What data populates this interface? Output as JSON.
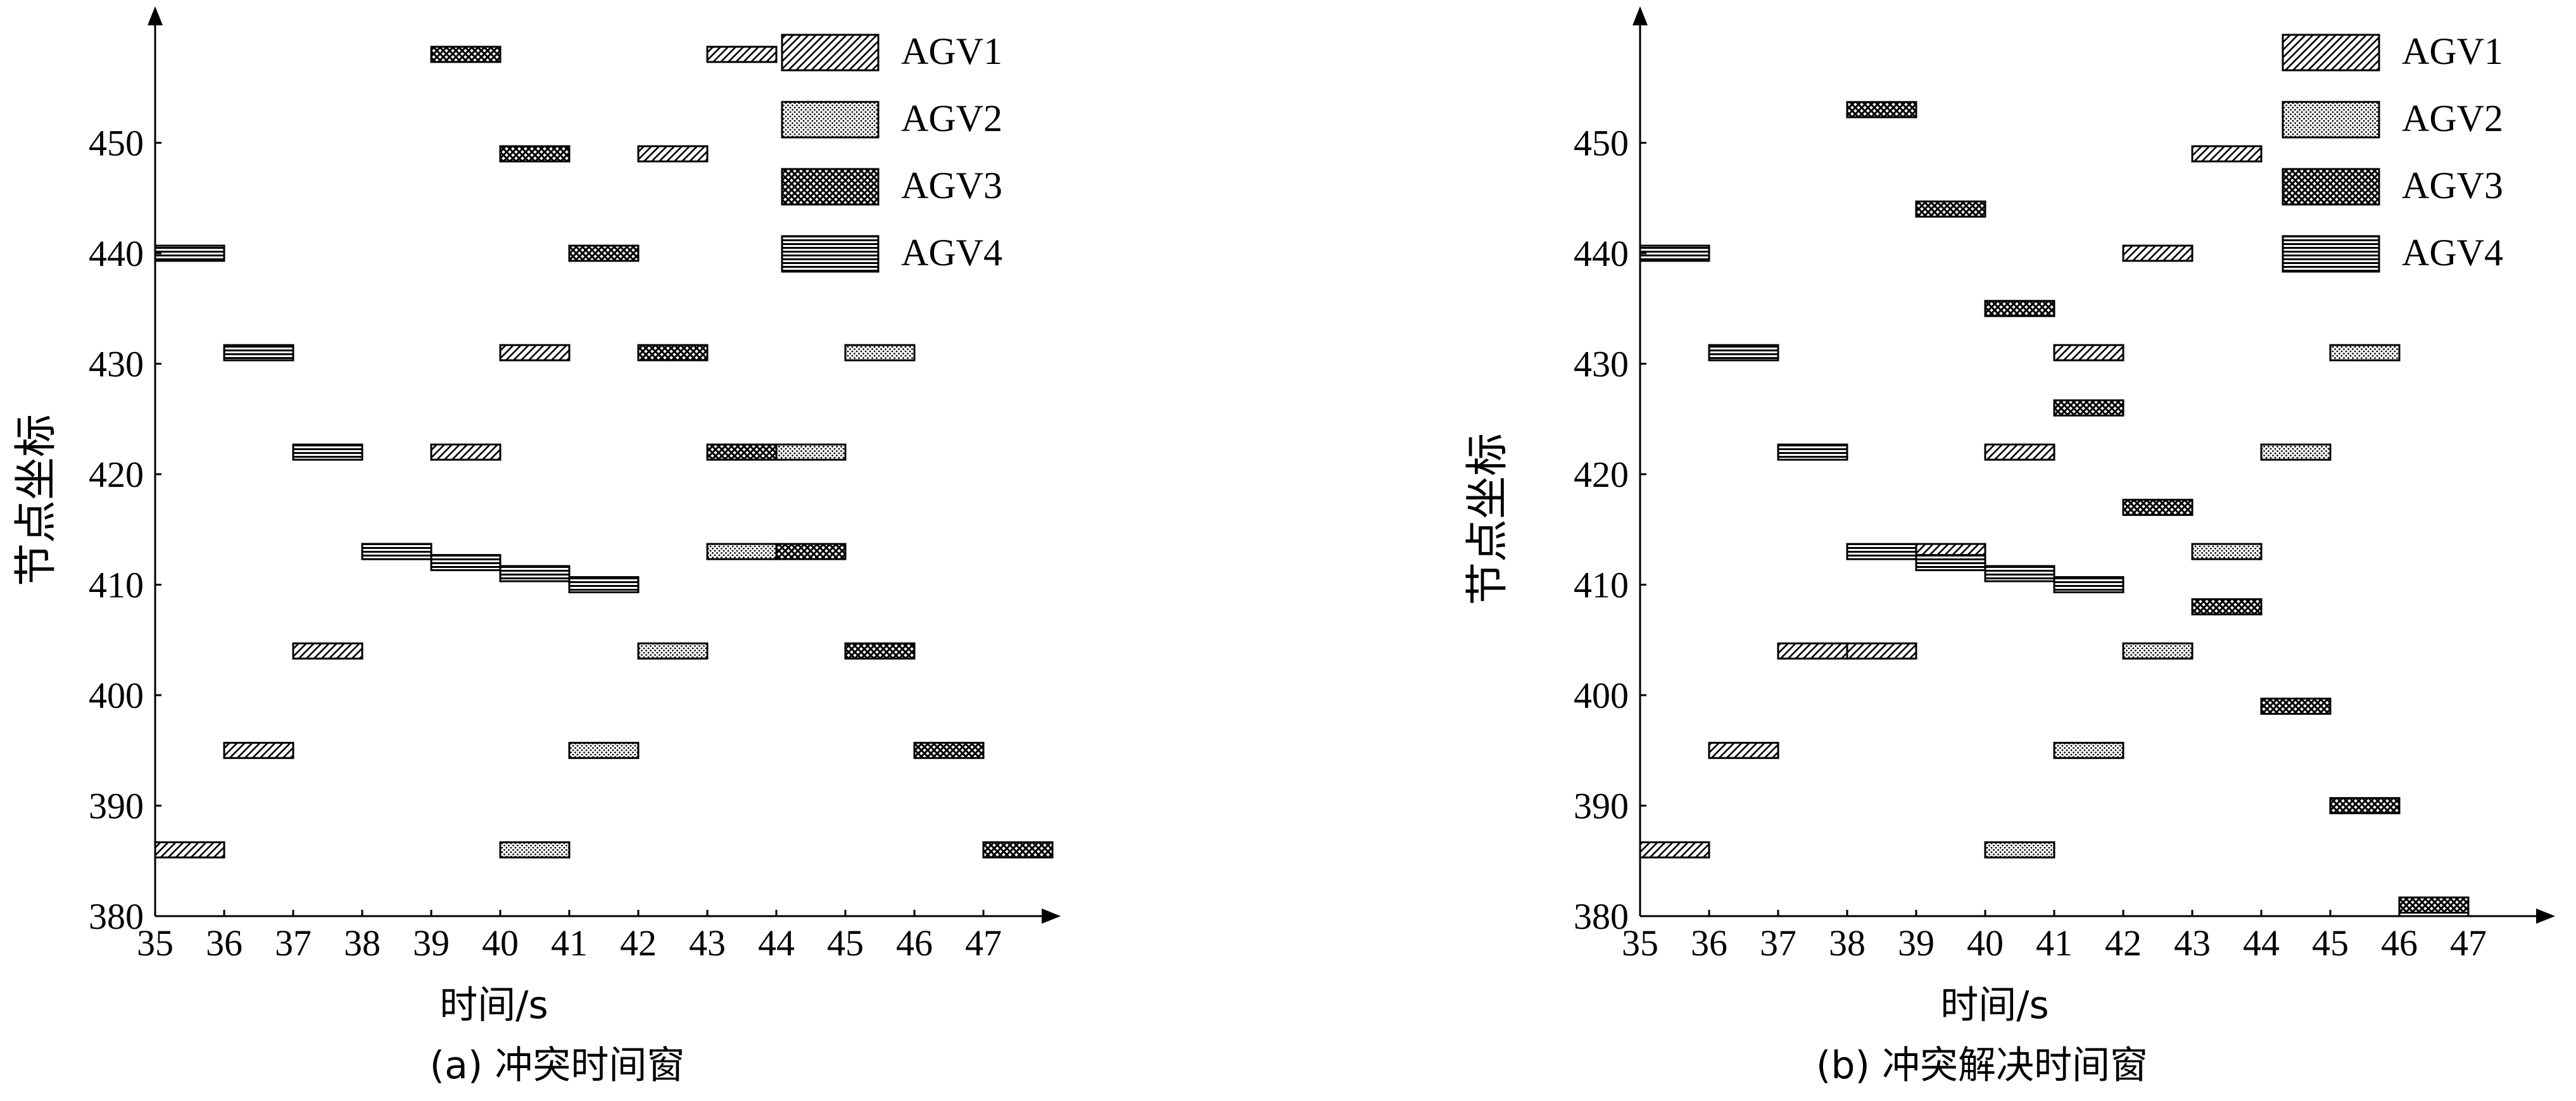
{
  "colors": {
    "ink": "#000000",
    "background": "#ffffff"
  },
  "legend_items": [
    {
      "label": "AGV1",
      "pattern": "diagonal-hatch"
    },
    {
      "label": "AGV2",
      "pattern": "dots"
    },
    {
      "label": "AGV3",
      "pattern": "crosshatch"
    },
    {
      "label": "AGV4",
      "pattern": "horizontal-lines"
    }
  ],
  "chart_data": [
    {
      "type": "bar",
      "subtype": "time-window-gantt",
      "caption": "(a)  冲突时间窗",
      "xlabel": "时间/s",
      "ylabel": "节点坐标",
      "xlim": [
        35,
        48
      ],
      "ylim": [
        380,
        460
      ],
      "xticks": [
        "35",
        "36",
        "37",
        "38",
        "39",
        "40",
        "41",
        "42",
        "43",
        "44",
        "45",
        "46",
        "47"
      ],
      "yticks": [
        "380",
        "390",
        "400",
        "410",
        "420",
        "430",
        "440",
        "450"
      ],
      "legend": "top-right",
      "series": [
        {
          "name": "AGV1",
          "bars": [
            {
              "t0": 35,
              "t1": 36,
              "y": 386
            },
            {
              "t0": 36,
              "t1": 37,
              "y": 395
            },
            {
              "t0": 37,
              "t1": 38,
              "y": 404
            },
            {
              "t0": 38,
              "t1": 39,
              "y": 413
            },
            {
              "t0": 39,
              "t1": 40,
              "y": 422
            },
            {
              "t0": 40,
              "t1": 41,
              "y": 431
            },
            {
              "t0": 41,
              "t1": 42,
              "y": 440
            },
            {
              "t0": 42,
              "t1": 43,
              "y": 449
            },
            {
              "t0": 43,
              "t1": 44,
              "y": 458
            }
          ]
        },
        {
          "name": "AGV2",
          "bars": [
            {
              "t0": 40,
              "t1": 41,
              "y": 386
            },
            {
              "t0": 41,
              "t1": 42,
              "y": 395
            },
            {
              "t0": 42,
              "t1": 43,
              "y": 404
            },
            {
              "t0": 43,
              "t1": 44,
              "y": 413
            },
            {
              "t0": 44,
              "t1": 45,
              "y": 422
            },
            {
              "t0": 45,
              "t1": 46,
              "y": 431
            }
          ]
        },
        {
          "name": "AGV3",
          "bars": [
            {
              "t0": 39,
              "t1": 40,
              "y": 458
            },
            {
              "t0": 40,
              "t1": 41,
              "y": 449
            },
            {
              "t0": 41,
              "t1": 42,
              "y": 440
            },
            {
              "t0": 42,
              "t1": 43,
              "y": 431
            },
            {
              "t0": 43,
              "t1": 44,
              "y": 422
            },
            {
              "t0": 44,
              "t1": 45,
              "y": 413
            },
            {
              "t0": 45,
              "t1": 46,
              "y": 404
            },
            {
              "t0": 46,
              "t1": 47,
              "y": 395
            },
            {
              "t0": 47,
              "t1": 48,
              "y": 386
            }
          ]
        },
        {
          "name": "AGV4",
          "bars": [
            {
              "t0": 35,
              "t1": 36,
              "y": 440
            },
            {
              "t0": 36,
              "t1": 37,
              "y": 431
            },
            {
              "t0": 37,
              "t1": 38,
              "y": 422
            },
            {
              "t0": 38,
              "t1": 39,
              "y": 413
            },
            {
              "t0": 39,
              "t1": 40,
              "y": 412
            },
            {
              "t0": 40,
              "t1": 41,
              "y": 411
            },
            {
              "t0": 41,
              "t1": 42,
              "y": 410
            }
          ]
        }
      ]
    },
    {
      "type": "bar",
      "subtype": "time-window-gantt",
      "caption": "(b)  冲突解决时间窗",
      "xlabel": "时间/s",
      "ylabel": "节点坐标",
      "xlim": [
        35,
        48
      ],
      "ylim": [
        380,
        460
      ],
      "xticks": [
        "35",
        "36",
        "37",
        "38",
        "39",
        "40",
        "41",
        "42",
        "43",
        "44",
        "45",
        "46",
        "47"
      ],
      "yticks": [
        "380",
        "390",
        "400",
        "410",
        "420",
        "430",
        "440",
        "450"
      ],
      "legend": "top-right",
      "series": [
        {
          "name": "AGV1",
          "bars": [
            {
              "t0": 35,
              "t1": 36,
              "y": 386
            },
            {
              "t0": 36,
              "t1": 37,
              "y": 395
            },
            {
              "t0": 37,
              "t1": 38,
              "y": 404
            },
            {
              "t0": 38,
              "t1": 39,
              "y": 404
            },
            {
              "t0": 39,
              "t1": 40,
              "y": 413
            },
            {
              "t0": 40,
              "t1": 41,
              "y": 422
            },
            {
              "t0": 41,
              "t1": 42,
              "y": 431
            },
            {
              "t0": 42,
              "t1": 43,
              "y": 440
            },
            {
              "t0": 43,
              "t1": 44,
              "y": 449
            }
          ]
        },
        {
          "name": "AGV2",
          "bars": [
            {
              "t0": 40,
              "t1": 41,
              "y": 386
            },
            {
              "t0": 41,
              "t1": 42,
              "y": 395
            },
            {
              "t0": 42,
              "t1": 43,
              "y": 404
            },
            {
              "t0": 43,
              "t1": 44,
              "y": 413
            },
            {
              "t0": 44,
              "t1": 45,
              "y": 422
            },
            {
              "t0": 45,
              "t1": 46,
              "y": 431
            }
          ]
        },
        {
          "name": "AGV3",
          "bars": [
            {
              "t0": 38,
              "t1": 39,
              "y": 453
            },
            {
              "t0": 39,
              "t1": 40,
              "y": 444
            },
            {
              "t0": 40,
              "t1": 41,
              "y": 435
            },
            {
              "t0": 41,
              "t1": 42,
              "y": 426
            },
            {
              "t0": 42,
              "t1": 43,
              "y": 417
            },
            {
              "t0": 43,
              "t1": 44,
              "y": 408
            },
            {
              "t0": 44,
              "t1": 45,
              "y": 399
            },
            {
              "t0": 45,
              "t1": 46,
              "y": 390
            },
            {
              "t0": 46,
              "t1": 47,
              "y": 381
            }
          ]
        },
        {
          "name": "AGV4",
          "bars": [
            {
              "t0": 35,
              "t1": 36,
              "y": 440
            },
            {
              "t0": 36,
              "t1": 37,
              "y": 431
            },
            {
              "t0": 37,
              "t1": 38,
              "y": 422
            },
            {
              "t0": 38,
              "t1": 39,
              "y": 413
            },
            {
              "t0": 39,
              "t1": 40,
              "y": 412
            },
            {
              "t0": 40,
              "t1": 41,
              "y": 411
            },
            {
              "t0": 41,
              "t1": 42,
              "y": 410
            }
          ]
        }
      ]
    }
  ]
}
